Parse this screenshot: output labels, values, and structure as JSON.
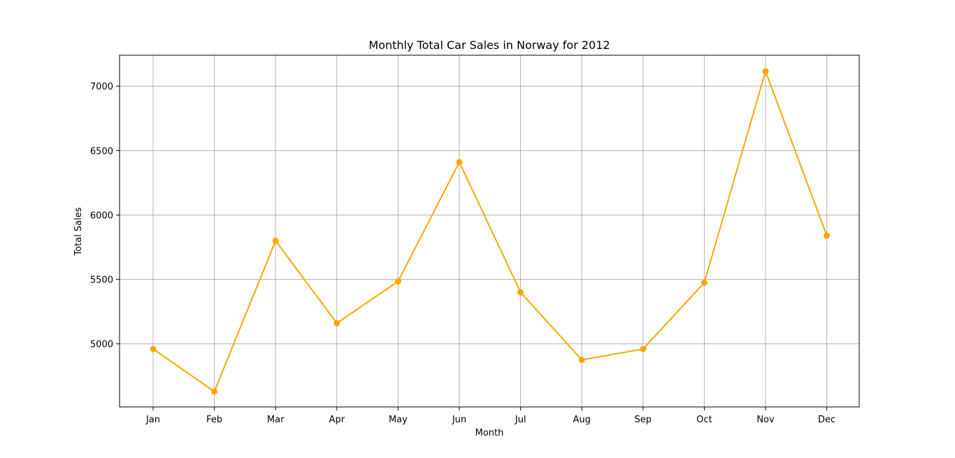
{
  "chart_data": {
    "type": "line",
    "title": "Monthly Total Car Sales in Norway for 2012",
    "xlabel": "Month",
    "ylabel": "Total Sales",
    "categories": [
      "Jan",
      "Feb",
      "Mar",
      "Apr",
      "May",
      "Jun",
      "Jul",
      "Aug",
      "Sep",
      "Oct",
      "Nov",
      "Dec"
    ],
    "series": [
      {
        "values": [
          4960,
          4630,
          5800,
          5160,
          5485,
          6410,
          5400,
          4875,
          4960,
          5475,
          7115,
          5840
        ],
        "color": "#ffa500",
        "marker": "circle"
      }
    ],
    "yticks": [
      5000,
      5500,
      6000,
      6500,
      7000
    ],
    "ylim": [
      4510,
      7240
    ],
    "grid": true,
    "legend": "none"
  }
}
